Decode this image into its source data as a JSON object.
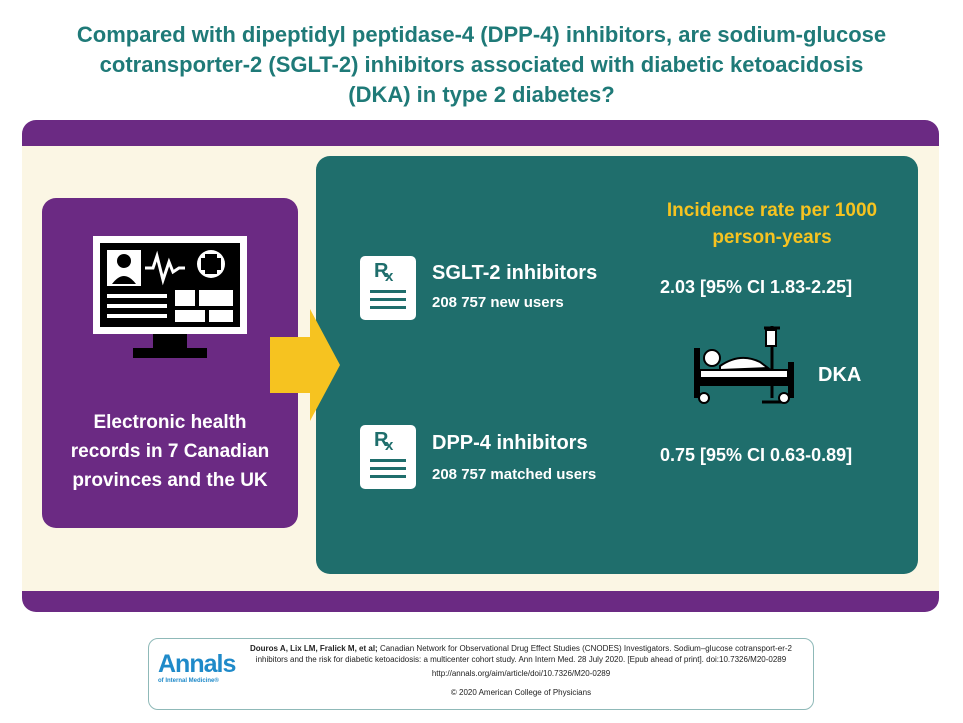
{
  "title": "Compared with dipeptidyl peptidase-4 (DPP-4) inhibitors, are sodium-glucose\ncotransporter-2 (SGLT-2) inhibitors associated with diabetic ketoacidosis\n(DKA) in type 2 diabetes?",
  "left_panel": {
    "text": "Electronic health\nrecords in 7 Canadian\nprovinces and the UK",
    "icon": "monitor-health-record-icon"
  },
  "groups": [
    {
      "name": "SGLT-2 inhibitors",
      "users": "208 757 new users",
      "icon": "prescription-icon",
      "rate": "2.03 [95% CI 1.83-2.25]"
    },
    {
      "name": "DPP-4 inhibitors",
      "users": "208 757 matched users",
      "icon": "prescription-icon",
      "rate": "0.75 [95% CI 0.63-0.89]"
    }
  ],
  "incidence": {
    "heading": "Incidence rate per 1000\nperson-years",
    "outcome": "DKA",
    "outcome_icon": "hospital-bed-icon"
  },
  "citation": {
    "authors": "Douros A, Lix LM, Fralick M, et al;",
    "text": "Canadian Network for Observational Drug Effect Studies (CNODES) Investigators. Sodium–glucose cotransport-er-2 inhibitors and the risk for diabetic ketoacidosis: a multicenter cohort study. Ann Intern Med. 28 July 2020. [Epub ahead of print]. doi:10.7326/M20-0289",
    "url": "http://annals.org/aim/article/doi/10.7326/M20-0289",
    "copyright": "© 2020 American College of Physicians",
    "logo_main": "Annals",
    "logo_sub": "of Internal Medicine®"
  },
  "colors": {
    "teal_title": "#1f7a78",
    "purple": "#6b2a83",
    "teal_panel": "#1f6e6c",
    "yellow": "#f6c320",
    "cream": "#fbf6e4"
  }
}
